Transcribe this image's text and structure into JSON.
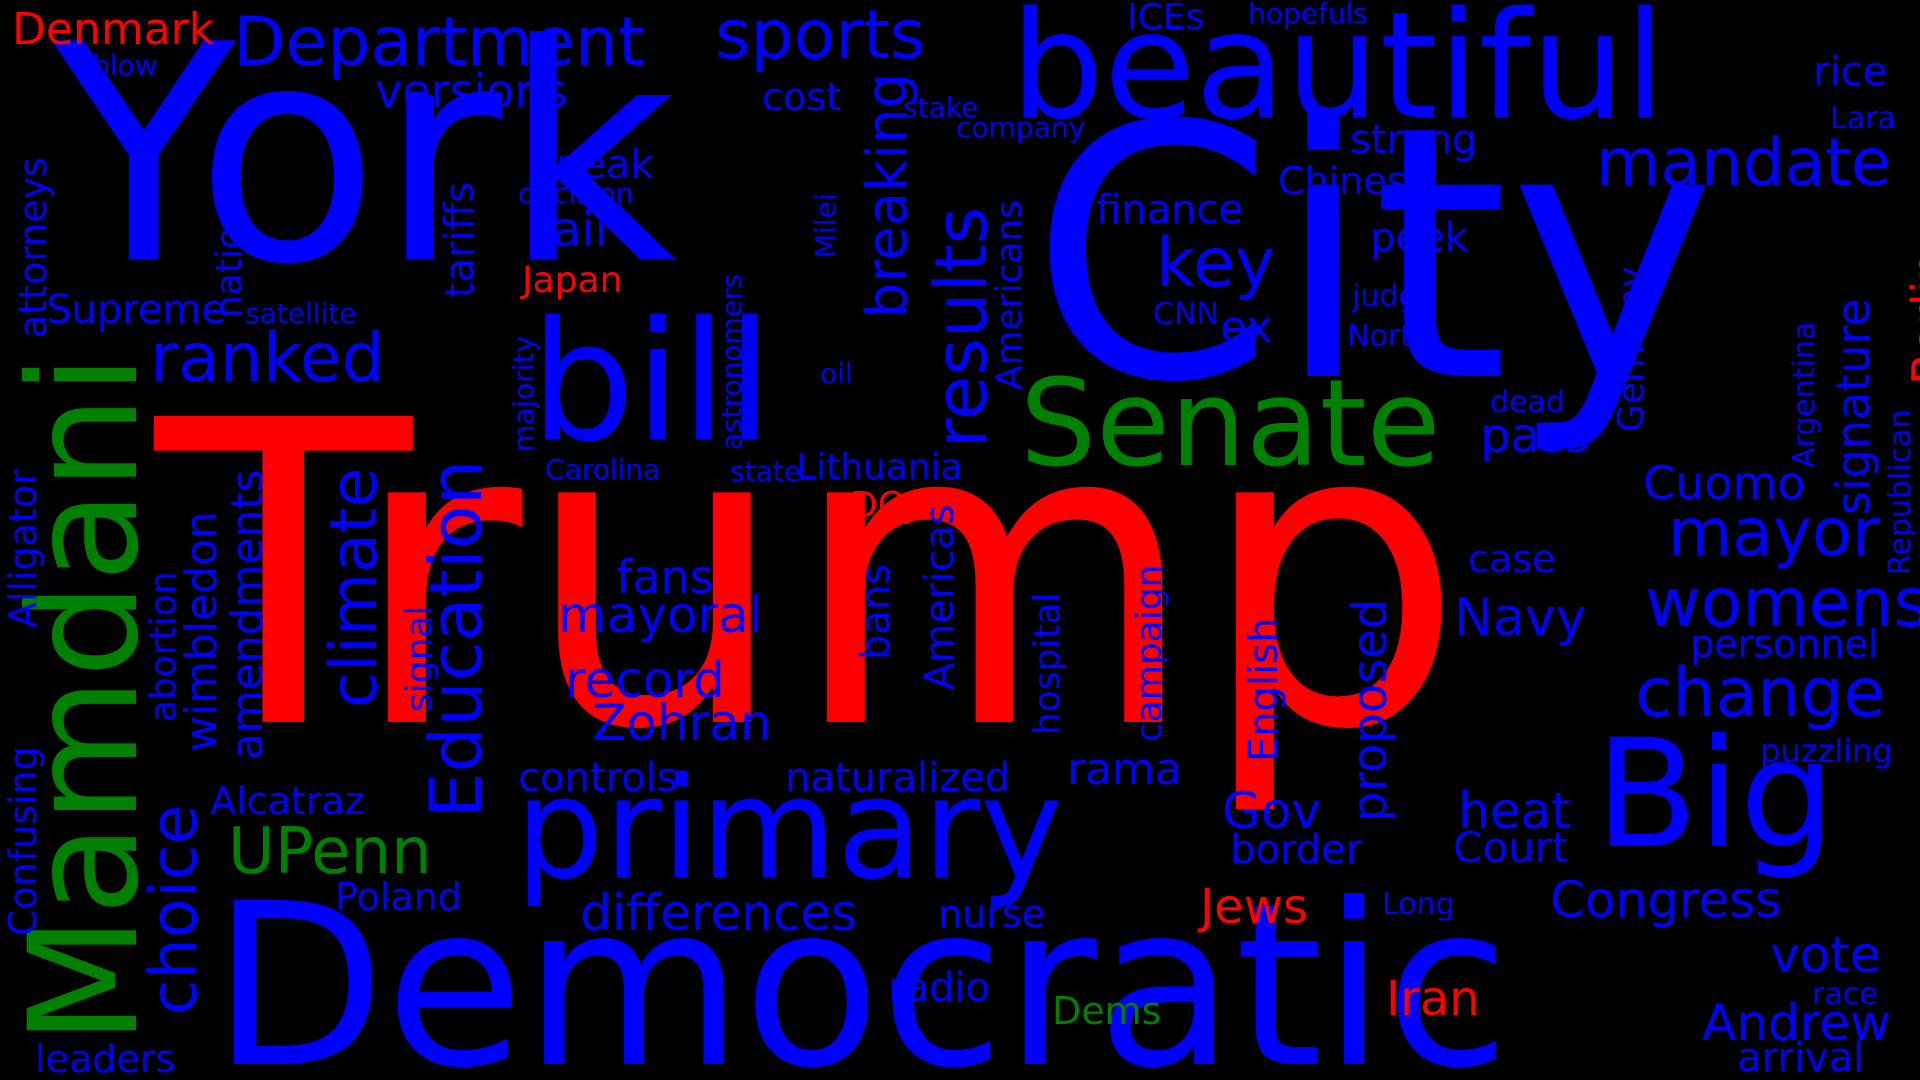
{
  "colors": {
    "blue": "#0000ff",
    "red": "#ff0000",
    "green": "#008000",
    "background": "#000000"
  },
  "words": [
    {
      "text": "Trump",
      "color": "red"
    },
    {
      "text": "City",
      "color": "blue"
    },
    {
      "text": "York",
      "color": "blue"
    },
    {
      "text": "Democratic",
      "color": "blue"
    },
    {
      "text": "beautiful",
      "color": "blue"
    },
    {
      "text": "Mamdani",
      "color": "green"
    },
    {
      "text": "bill",
      "color": "blue"
    },
    {
      "text": "primary",
      "color": "blue"
    },
    {
      "text": "Big",
      "color": "blue"
    },
    {
      "text": "Senate",
      "color": "green"
    },
    {
      "text": "Education",
      "color": "blue"
    },
    {
      "text": "results",
      "color": "blue"
    },
    {
      "text": "climate",
      "color": "blue"
    },
    {
      "text": "ranked",
      "color": "blue"
    },
    {
      "text": "choice",
      "color": "blue"
    },
    {
      "text": "Department",
      "color": "blue"
    },
    {
      "text": "sports",
      "color": "blue"
    },
    {
      "text": "mandate",
      "color": "blue"
    },
    {
      "text": "mayor",
      "color": "blue"
    },
    {
      "text": "womens",
      "color": "blue"
    },
    {
      "text": "change",
      "color": "blue"
    },
    {
      "text": "UPenn",
      "color": "green"
    },
    {
      "text": "key",
      "color": "blue"
    },
    {
      "text": "breaking",
      "color": "blue"
    },
    {
      "text": "versions",
      "color": "blue"
    },
    {
      "text": "Zohran",
      "color": "blue"
    },
    {
      "text": "record",
      "color": "blue"
    },
    {
      "text": "mayoral",
      "color": "blue"
    },
    {
      "text": "differences",
      "color": "blue"
    },
    {
      "text": "Congress",
      "color": "blue"
    },
    {
      "text": "Andrew",
      "color": "blue"
    },
    {
      "text": "vote",
      "color": "blue"
    },
    {
      "text": "Navy",
      "color": "blue"
    },
    {
      "text": "heat",
      "color": "blue"
    },
    {
      "text": "Denmark",
      "color": "red"
    },
    {
      "text": "Berlin",
      "color": "red"
    },
    {
      "text": "Jews",
      "color": "red"
    },
    {
      "text": "Iran",
      "color": "red"
    },
    {
      "text": "Japan",
      "color": "red"
    },
    {
      "text": "DOJ",
      "color": "red"
    },
    {
      "text": "Dems",
      "color": "green"
    },
    {
      "text": "proposed",
      "color": "blue"
    },
    {
      "text": "amendments",
      "color": "blue"
    },
    {
      "text": "wimbledon",
      "color": "blue"
    },
    {
      "text": "fail",
      "color": "blue"
    },
    {
      "text": "tariffs",
      "color": "blue"
    },
    {
      "text": "Supreme",
      "color": "blue"
    },
    {
      "text": "attorneys",
      "color": "blue"
    },
    {
      "text": "Alligator",
      "color": "blue"
    },
    {
      "text": "Confusing",
      "color": "blue"
    },
    {
      "text": "Alcatraz",
      "color": "blue"
    },
    {
      "text": "Poland",
      "color": "blue"
    },
    {
      "text": "leaders",
      "color": "blue"
    },
    {
      "text": "nationals",
      "color": "blue"
    },
    {
      "text": "abortion",
      "color": "blue"
    },
    {
      "text": "signal",
      "color": "blue"
    },
    {
      "text": "satellite",
      "color": "blue"
    },
    {
      "text": "sneak",
      "color": "blue"
    },
    {
      "text": "decision",
      "color": "blue"
    },
    {
      "text": "cost",
      "color": "blue"
    },
    {
      "text": "stake",
      "color": "blue"
    },
    {
      "text": "company",
      "color": "blue"
    },
    {
      "text": "ICEs",
      "color": "blue"
    },
    {
      "text": "hopefuls",
      "color": "blue"
    },
    {
      "text": "strong",
      "color": "blue"
    },
    {
      "text": "Chinese",
      "color": "blue"
    },
    {
      "text": "finance",
      "color": "blue"
    },
    {
      "text": "peek",
      "color": "blue"
    },
    {
      "text": "judge",
      "color": "blue"
    },
    {
      "text": "North",
      "color": "blue"
    },
    {
      "text": "CNN",
      "color": "blue"
    },
    {
      "text": "ex",
      "color": "blue"
    },
    {
      "text": "rice",
      "color": "blue"
    },
    {
      "text": "Lara",
      "color": "blue"
    },
    {
      "text": "signature",
      "color": "blue"
    },
    {
      "text": "Republican",
      "color": "blue"
    },
    {
      "text": "Argentina",
      "color": "blue"
    },
    {
      "text": "Germany",
      "color": "blue"
    },
    {
      "text": "dead",
      "color": "blue"
    },
    {
      "text": "pass",
      "color": "blue"
    },
    {
      "text": "Cuomo",
      "color": "blue"
    },
    {
      "text": "case",
      "color": "blue"
    },
    {
      "text": "personnel",
      "color": "blue"
    },
    {
      "text": "puzzling",
      "color": "blue"
    },
    {
      "text": "Gov",
      "color": "blue"
    },
    {
      "text": "border",
      "color": "blue"
    },
    {
      "text": "Court",
      "color": "blue"
    },
    {
      "text": "Long",
      "color": "blue"
    },
    {
      "text": "race",
      "color": "blue"
    },
    {
      "text": "arrival",
      "color": "blue"
    },
    {
      "text": "rama",
      "color": "blue"
    },
    {
      "text": "nurse",
      "color": "blue"
    },
    {
      "text": "radio",
      "color": "blue"
    },
    {
      "text": "controls",
      "color": "blue"
    },
    {
      "text": "naturalized",
      "color": "blue"
    },
    {
      "text": "fans",
      "color": "blue"
    },
    {
      "text": "Lithuania",
      "color": "blue"
    },
    {
      "text": "state",
      "color": "blue"
    },
    {
      "text": "Carolina",
      "color": "blue"
    },
    {
      "text": "majority",
      "color": "blue"
    },
    {
      "text": "astronomers",
      "color": "blue"
    },
    {
      "text": "oil",
      "color": "blue"
    },
    {
      "text": "Milei",
      "color": "blue"
    },
    {
      "text": "Americans",
      "color": "blue"
    },
    {
      "text": "Americas",
      "color": "blue"
    },
    {
      "text": "bans",
      "color": "blue"
    },
    {
      "text": "hospital",
      "color": "blue"
    },
    {
      "text": "campaign",
      "color": "blue"
    },
    {
      "text": "English",
      "color": "blue"
    },
    {
      "text": "blow",
      "color": "blue"
    }
  ]
}
